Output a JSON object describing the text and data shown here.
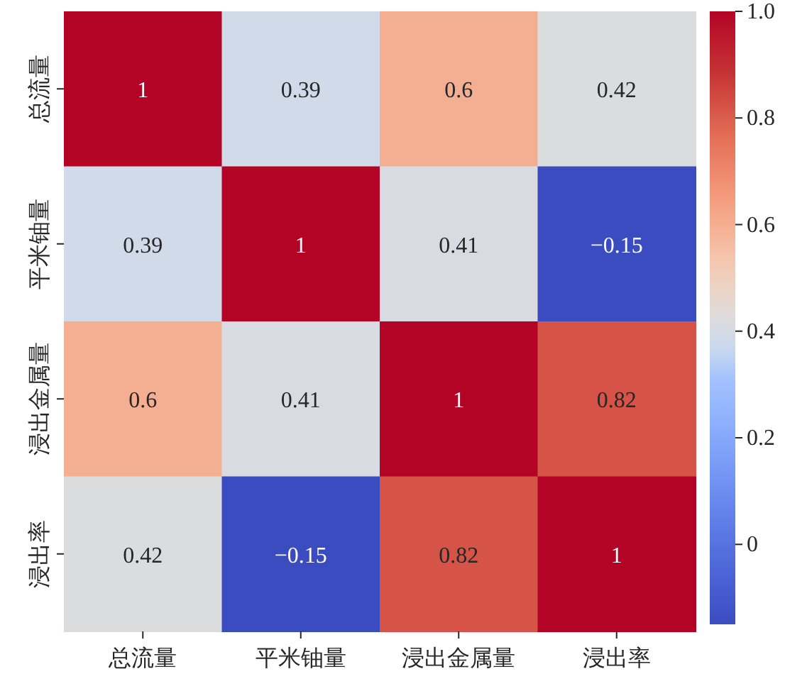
{
  "chart_data": {
    "type": "heatmap",
    "categories": [
      "总流量",
      "平米铀量",
      "浸出金属量",
      "浸出率"
    ],
    "y_categories": [
      "总流量",
      "平米铀量",
      "浸出金属量",
      "浸出率"
    ],
    "cells": [
      [
        1,
        0.39,
        0.6,
        0.42
      ],
      [
        0.39,
        1,
        0.41,
        -0.15
      ],
      [
        0.6,
        0.41,
        1,
        0.82
      ],
      [
        0.42,
        -0.15,
        0.82,
        1
      ]
    ],
    "data_labels": true,
    "clim": [
      -0.15,
      1
    ],
    "cticks": [
      0,
      0.2,
      0.4,
      0.6,
      0.8,
      {
        "value": 1,
        "label": "1.0"
      }
    ]
  }
}
